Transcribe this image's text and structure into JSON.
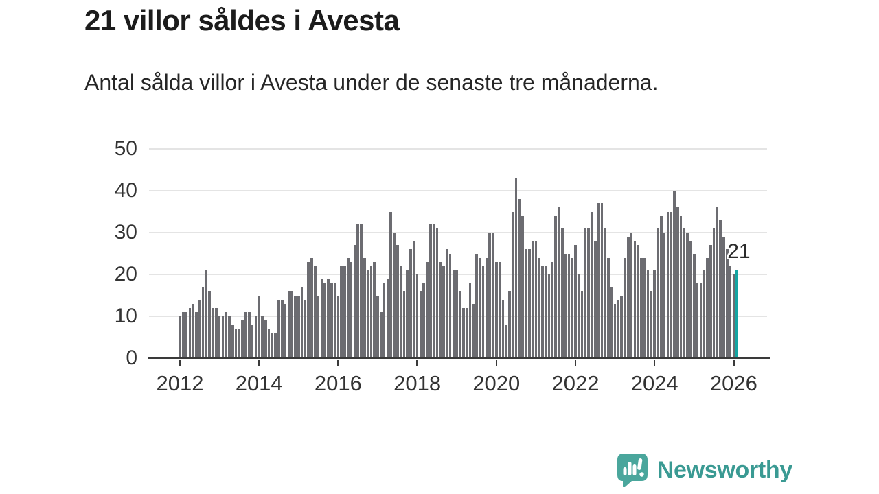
{
  "header": {
    "title": "21 villor såldes i Avesta",
    "subtitle": "Antal sålda villor i Avesta under de senaste tre månaderna."
  },
  "chart_data": {
    "type": "bar",
    "title": "21 villor såldes i Avesta",
    "subtitle": "Antal sålda villor i Avesta under de senaste tre månaderna.",
    "x_frequency": "monthly",
    "x_start": "2012-01",
    "x_end": "2026-02",
    "values": [
      10,
      11,
      11,
      12,
      13,
      11,
      14,
      17,
      21,
      16,
      12,
      12,
      10,
      10,
      11,
      10,
      8,
      7,
      7,
      9,
      11,
      11,
      8,
      10,
      15,
      10,
      9,
      7,
      6,
      6,
      14,
      14,
      13,
      16,
      16,
      15,
      15,
      17,
      14,
      23,
      24,
      22,
      15,
      19,
      18,
      19,
      18,
      18,
      15,
      22,
      22,
      24,
      23,
      27,
      32,
      32,
      24,
      21,
      22,
      23,
      15,
      11,
      18,
      19,
      35,
      30,
      27,
      22,
      16,
      21,
      26,
      28,
      20,
      16,
      18,
      23,
      32,
      32,
      31,
      23,
      22,
      26,
      25,
      21,
      21,
      16,
      12,
      12,
      18,
      13,
      25,
      24,
      22,
      24,
      30,
      30,
      23,
      23,
      14,
      8,
      16,
      35,
      43,
      38,
      34,
      26,
      26,
      28,
      28,
      24,
      22,
      22,
      20,
      23,
      34,
      36,
      31,
      25,
      25,
      24,
      27,
      20,
      16,
      31,
      31,
      35,
      28,
      37,
      37,
      31,
      24,
      17,
      13,
      14,
      15,
      24,
      29,
      30,
      28,
      27,
      24,
      24,
      21,
      16,
      21,
      31,
      34,
      30,
      35,
      35,
      40,
      36,
      34,
      31,
      30,
      28,
      25,
      18,
      18,
      21,
      24,
      27,
      31,
      36,
      33,
      29,
      26,
      22,
      20,
      21
    ],
    "ylim": [
      0,
      50
    ],
    "yticks": [
      0,
      10,
      20,
      30,
      40,
      50
    ],
    "xticks": [
      "2012",
      "2014",
      "2016",
      "2018",
      "2020",
      "2022",
      "2024",
      "2026"
    ],
    "grid": "horizontal",
    "legend": "none",
    "bar_color": "#6c6c71",
    "highlight_color": "#14a5a2",
    "highlight_index": 169,
    "highlight_value": 21,
    "highlight_label": "21"
  },
  "annotation": {
    "last_value_label": "21"
  },
  "footer": {
    "brand": "Newsworthy",
    "logo_icon": "newsworthy-speech-bubble-chart-icon",
    "brand_color": "#3a9a93",
    "icon_color": "#4aa69c"
  }
}
